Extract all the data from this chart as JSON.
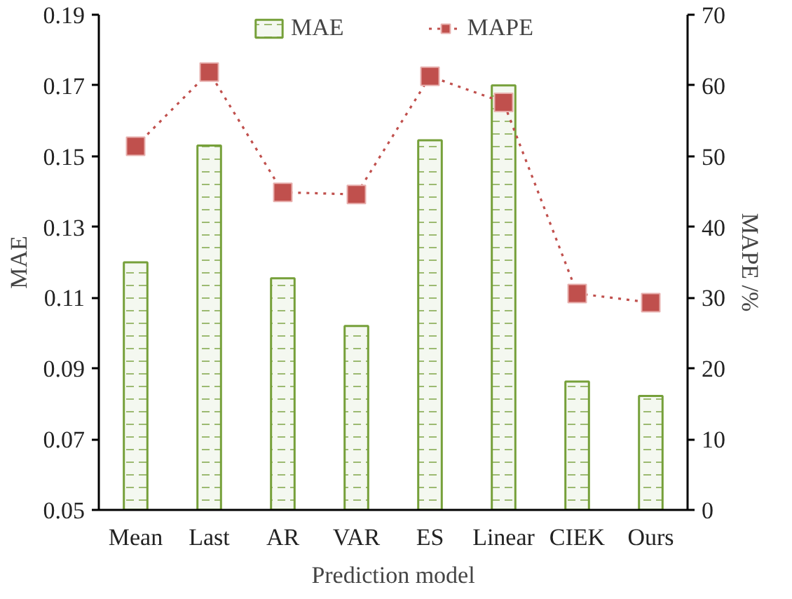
{
  "chart_data": {
    "type": "bar",
    "xlabel": "Prediction model",
    "ylabel": "MAE",
    "y2label": "MAPE /%",
    "categories": [
      "Mean",
      "Last",
      "AR",
      "VAR",
      "ES",
      "Linear",
      "CIEK",
      "Ours"
    ],
    "series": [
      {
        "name": "MAE",
        "color": "#76a03a",
        "values": [
          0.12,
          0.153,
          0.1155,
          0.102,
          0.1545,
          0.17,
          0.0863,
          0.0822
        ]
      },
      {
        "name": "MAPE",
        "type": "line",
        "axis": "y2",
        "color": "#c0504d",
        "marker": "square",
        "line_style": "dotted",
        "values": [
          51.4,
          61.9,
          44.9,
          44.6,
          61.3,
          57.6,
          30.6,
          29.3
        ]
      }
    ],
    "ylim": [
      0.05,
      0.19
    ],
    "yticks": [
      0.05,
      0.07,
      0.09,
      0.11,
      0.13,
      0.15,
      0.17,
      0.19
    ],
    "y2lim": [
      0,
      70
    ],
    "y2ticks": [
      0,
      10,
      20,
      30,
      40,
      50,
      60,
      70
    ],
    "grid": false,
    "legend": "top"
  }
}
